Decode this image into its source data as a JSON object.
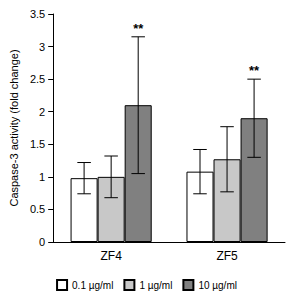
{
  "chart_data": {
    "type": "bar",
    "y_label": "Caspase-3 activity (fold change)",
    "categories": [
      "ZF4",
      "ZF5"
    ],
    "series": [
      {
        "name": "0.1 µg/ml",
        "color": "#ffffff",
        "values": [
          0.98,
          1.08
        ],
        "errors": [
          0.24,
          0.34
        ]
      },
      {
        "name": "1 µg/ml",
        "color": "#c8c8c8",
        "values": [
          1.0,
          1.27
        ],
        "errors": [
          0.32,
          0.5
        ]
      },
      {
        "name": "10 µg/ml",
        "color": "#808080",
        "values": [
          2.1,
          1.9
        ],
        "errors": [
          1.05,
          0.6
        ],
        "annotations": [
          "**",
          "**"
        ]
      }
    ],
    "ylim": [
      0,
      3.5
    ],
    "yticks": [
      0,
      0.5,
      1,
      1.5,
      2,
      2.5,
      3,
      3.5
    ],
    "grid": false,
    "legend": "bottom"
  }
}
